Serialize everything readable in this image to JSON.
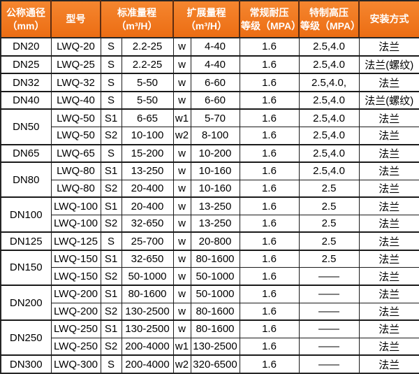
{
  "colors": {
    "header_bg": "#ec6d13",
    "header_bg_light": "#f5862f",
    "header_text": "#ffffff",
    "header_divider": "#5f2d10",
    "grid": "#1a1a1a"
  },
  "table": {
    "headers": [
      "公称通径\n（mm）",
      "型号",
      "标准量程\n（m³/H）",
      "扩展量程\n（m³/H）",
      "常规耐压\n等级（MPA）",
      "特制高压\n等级（MPA）",
      "安装方式"
    ],
    "groups": [
      {
        "dn": "DN20",
        "rows": [
          [
            "LWQ-20",
            "S",
            "2.2-25",
            "w",
            "4-40",
            "1.6",
            "2.5,4.0",
            "法兰"
          ]
        ]
      },
      {
        "dn": "DN25",
        "rows": [
          [
            "LWQ-25",
            "S",
            "2.2-25",
            "w",
            "4-40",
            "1.6",
            "2.5,4.0",
            "法兰(螺纹)"
          ]
        ]
      },
      {
        "dn": "DN32",
        "rows": [
          [
            "LWQ-32",
            "S",
            "5-50",
            "w",
            "6-60",
            "1.6",
            "2.5,4.0,",
            "法兰"
          ]
        ]
      },
      {
        "dn": "DN40",
        "rows": [
          [
            "LWQ-40",
            "S",
            "5-50",
            "w",
            "6-60",
            "1.6",
            "2.5,4.0",
            "法兰(螺纹)"
          ]
        ]
      },
      {
        "dn": "DN50",
        "rows": [
          [
            "LWQ-50",
            "S1",
            "6-65",
            "w1",
            "5-70",
            "1.6",
            "2.5,4.0",
            "法兰"
          ],
          [
            "LWQ-50",
            "S2",
            "10-100",
            "w2",
            "8-100",
            "1.6",
            "2.5,4.0",
            "法兰"
          ]
        ]
      },
      {
        "dn": "DN65",
        "rows": [
          [
            "LWQ-65",
            "S",
            "15-200",
            "w",
            "10-200",
            "1.6",
            "2.5,4.0",
            "法兰"
          ]
        ]
      },
      {
        "dn": "DN80",
        "rows": [
          [
            "LWQ-80",
            "S1",
            "13-250",
            "w",
            "10-160",
            "1.6",
            "2.5,4.0",
            "法兰"
          ],
          [
            "LWQ-80",
            "S2",
            "20-400",
            "w",
            "10-160",
            "1.6",
            "2.5",
            "法兰"
          ]
        ]
      },
      {
        "dn": "DN100",
        "rows": [
          [
            "LWQ-100",
            "S1",
            "20-400",
            "w",
            "13-250",
            "1.6",
            "2.5",
            "法兰"
          ],
          [
            "LWQ-100",
            "S2",
            "32-650",
            "w",
            "13-250",
            "1.6",
            "2.5",
            "法兰"
          ]
        ]
      },
      {
        "dn": "DN125",
        "rows": [
          [
            "LWQ-125",
            "S",
            "25-700",
            "w",
            "20-800",
            "1.6",
            "2.5",
            "法兰"
          ]
        ]
      },
      {
        "dn": "DN150",
        "rows": [
          [
            "LWQ-150",
            "S1",
            "32-650",
            "w",
            "80-1600",
            "1.6",
            "2.5",
            "法兰"
          ],
          [
            "LWQ-150",
            "S2",
            "50-1000",
            "w",
            "50-1000",
            "1.6",
            "——",
            "法兰"
          ]
        ]
      },
      {
        "dn": "DN200",
        "rows": [
          [
            "LWQ-200",
            "S1",
            "80-1600",
            "w",
            "50-1000",
            "1.6",
            "——",
            "法兰"
          ],
          [
            "LWQ-200",
            "S2",
            "130-2500",
            "w",
            "80-1600",
            "1.6",
            "——",
            "法兰"
          ]
        ]
      },
      {
        "dn": "DN250",
        "rows": [
          [
            "LWQ-250",
            "S1",
            "130-2500",
            "w",
            "80-1600",
            "1.6",
            "——",
            "法兰"
          ],
          [
            "LWQ-250",
            "S2",
            "200-4000",
            "w1",
            "130-2500",
            "1.6",
            "——",
            "法兰"
          ]
        ]
      },
      {
        "dn": "DN300",
        "rows": [
          [
            "LWQ-300",
            "S",
            "200-4000",
            "w2",
            "320-6500",
            "1.6",
            "——",
            "法兰"
          ]
        ]
      }
    ]
  }
}
